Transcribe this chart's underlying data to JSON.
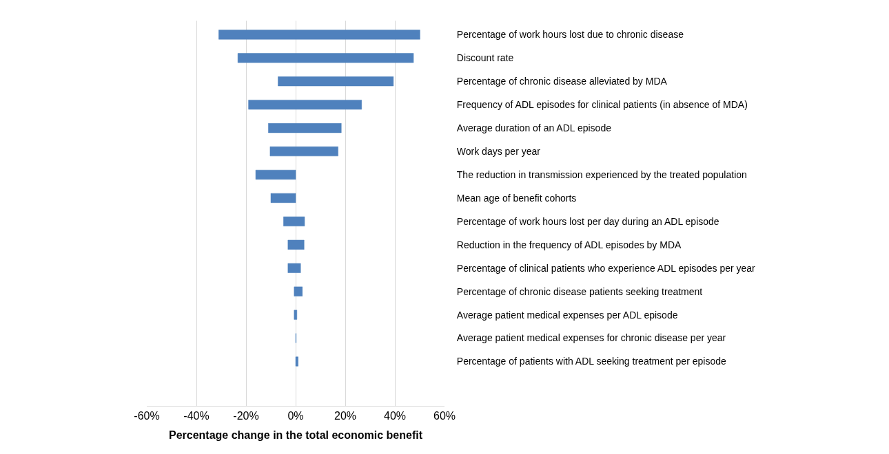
{
  "chart_data": {
    "type": "bar",
    "orientation": "horizontal",
    "xlabel": "Percentage change in the total economic benefit",
    "categories": [
      "Percentage of work hours lost due to chronic disease",
      "Discount rate",
      "Percentage of chronic disease alleviated by MDA",
      "Frequency of ADL episodes for clinical patients (in absence of MDA)",
      "Average duration of an ADL episode",
      "Work days per year",
      "The reduction in transmission experienced by the treated population",
      "Mean age of benefit cohorts",
      "Percentage of work hours lost per day during an ADL episode",
      "Reduction in the frequency of ADL episodes by MDA",
      "Percentage of clinical patients who experience ADL episodes per year",
      "Percentage of chronic disease patients seeking treatment",
      "Average patient medical expenses per ADL episode",
      "Average patient medical expenses for chronic disease per year",
      "Percentage of patients with ADL seeking treatment per episode"
    ],
    "base": [
      -31.0,
      -23.3,
      -7.1,
      -19.0,
      -11.0,
      -10.3,
      -16.1,
      -10.0,
      -4.9,
      -3.1,
      -3.1,
      -0.6,
      -0.6,
      0,
      0
    ],
    "values": [
      81.1,
      70.8,
      46.5,
      45.6,
      29.4,
      27.4,
      16.1,
      10.0,
      8.5,
      6.5,
      5.1,
      3.3,
      1.1,
      0.2,
      1.0
    ],
    "color": "#4f81bd",
    "xlim": [
      -60,
      60
    ],
    "xticks": [
      {
        "value": -60,
        "label": "-60%"
      },
      {
        "value": -40,
        "label": "-40%"
      },
      {
        "value": -20,
        "label": "-20%"
      },
      {
        "value": 0,
        "label": "0%"
      },
      {
        "value": 20,
        "label": "20%"
      },
      {
        "value": 40,
        "label": "40%"
      },
      {
        "value": 60,
        "label": "60%"
      }
    ],
    "grid": "x"
  }
}
